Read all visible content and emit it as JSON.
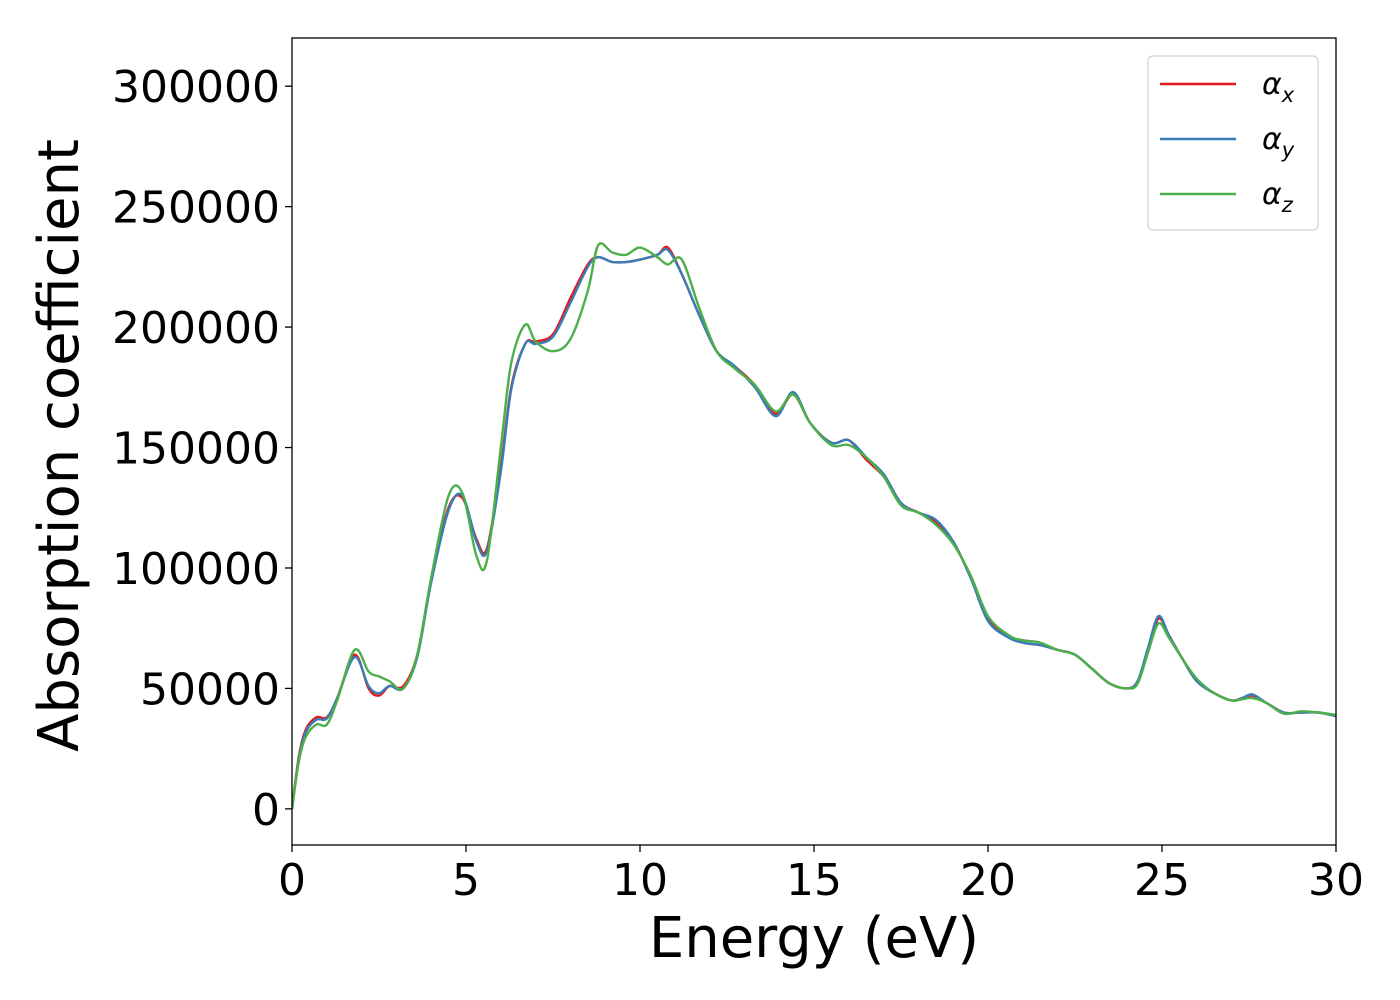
{
  "chart_data": {
    "type": "line",
    "xlabel": "Energy (eV)",
    "ylabel": "Absorption coefficient",
    "xlim": [
      0,
      30
    ],
    "ylim": [
      -15000,
      320000
    ],
    "xticks": [
      0,
      5,
      10,
      15,
      20,
      25,
      30
    ],
    "yticks": [
      0,
      50000,
      100000,
      150000,
      200000,
      250000,
      300000
    ],
    "grid": false,
    "legend_position": "top-right",
    "x": [
      0,
      0.2,
      0.4,
      0.7,
      1.0,
      1.3,
      1.8,
      2.2,
      2.5,
      2.8,
      3.2,
      3.6,
      4.0,
      4.5,
      4.9,
      5.3,
      5.6,
      6.0,
      6.3,
      6.7,
      7.0,
      7.5,
      8.0,
      8.5,
      8.8,
      9.2,
      9.6,
      10.0,
      10.5,
      10.8,
      11.2,
      11.7,
      12.2,
      12.7,
      13.3,
      13.9,
      14.4,
      14.9,
      15.5,
      16.0,
      16.5,
      17.0,
      17.5,
      18.0,
      18.5,
      19.0,
      19.5,
      20.0,
      20.6,
      21.0,
      21.5,
      22.0,
      22.5,
      23.0,
      23.5,
      24.0,
      24.3,
      24.6,
      24.9,
      25.2,
      25.6,
      26.0,
      26.5,
      27.0,
      27.3,
      27.6,
      28.0,
      28.5,
      29.0,
      29.5,
      30.0
    ],
    "series": [
      {
        "name": "x",
        "color": "#e41a1c",
        "values": [
          0,
          22000,
          33000,
          38000,
          38000,
          46000,
          64000,
          50000,
          47000,
          51000,
          51000,
          64000,
          95000,
          125000,
          129000,
          112000,
          108000,
          142000,
          175000,
          193000,
          194000,
          197000,
          212000,
          226000,
          229000,
          227000,
          227000,
          228000,
          230000,
          233000,
          222000,
          205000,
          190000,
          184000,
          176000,
          164000,
          172000,
          160000,
          152000,
          153000,
          145000,
          138000,
          127000,
          123000,
          119000,
          111000,
          96000,
          79000,
          72000,
          69000,
          68000,
          66000,
          64000,
          58000,
          52000,
          50000,
          53000,
          66000,
          79000,
          72000,
          62000,
          53000,
          48000,
          45000,
          46000,
          47000,
          44000,
          40000,
          40000,
          40000,
          38500
        ]
      },
      {
        "name": "y",
        "color": "#377eb8",
        "values": [
          0,
          21000,
          32000,
          37000,
          37500,
          46000,
          63000,
          51000,
          48000,
          51000,
          50000,
          63000,
          94000,
          124000,
          130000,
          111000,
          107000,
          140000,
          174000,
          193000,
          193000,
          196000,
          210000,
          225000,
          229000,
          227000,
          227000,
          228000,
          230000,
          232000,
          222000,
          205000,
          190000,
          184000,
          175000,
          163000,
          173000,
          160000,
          152000,
          153000,
          146000,
          139000,
          127000,
          123000,
          120000,
          111000,
          96000,
          78000,
          71000,
          69000,
          68000,
          66000,
          64000,
          58000,
          52000,
          50000,
          53000,
          67000,
          80000,
          72000,
          62000,
          53000,
          48000,
          45000,
          46000,
          47500,
          44000,
          40000,
          40000,
          40000,
          38500
        ]
      },
      {
        "name": "z",
        "color": "#4daf4a",
        "values": [
          0,
          20000,
          30000,
          35000,
          35000,
          45000,
          66000,
          57000,
          55000,
          53000,
          50000,
          64000,
          96000,
          130000,
          131000,
          105000,
          103000,
          150000,
          185000,
          201000,
          194000,
          190000,
          195000,
          215000,
          234000,
          231000,
          230000,
          233000,
          229000,
          226000,
          228000,
          208000,
          190000,
          183000,
          176000,
          165000,
          172000,
          160000,
          151000,
          151000,
          146000,
          138000,
          126000,
          123000,
          118000,
          110000,
          97000,
          80000,
          72000,
          70000,
          69000,
          66000,
          64000,
          58000,
          52000,
          50000,
          52000,
          65000,
          77000,
          71000,
          62000,
          54000,
          48000,
          45000,
          45500,
          46000,
          44000,
          39500,
          40500,
          40000,
          39000
        ]
      }
    ]
  }
}
